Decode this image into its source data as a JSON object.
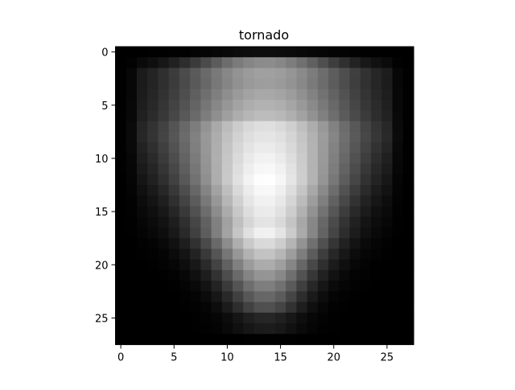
{
  "chart_data": {
    "type": "heatmap",
    "title": "tornado",
    "xlabel": "",
    "ylabel": "",
    "colormap": "gray",
    "xlim": [
      -0.5,
      27.5
    ],
    "ylim": [
      27.5,
      -0.5
    ],
    "xticks": [
      0,
      5,
      10,
      15,
      20,
      25
    ],
    "yticks": [
      0,
      5,
      10,
      15,
      20,
      25
    ],
    "xtick_labels": [
      "0",
      "5",
      "10",
      "15",
      "20",
      "25"
    ],
    "ytick_labels": [
      "0",
      "5",
      "10",
      "15",
      "20",
      "25"
    ],
    "grid": false,
    "value_range": [
      0,
      1
    ],
    "description": "28x28 grayscale intensity map, bright inverted-triangle (funnel) shape centred near column 13-14, brightest around rows 9-16, fading to black at the borders"
  }
}
